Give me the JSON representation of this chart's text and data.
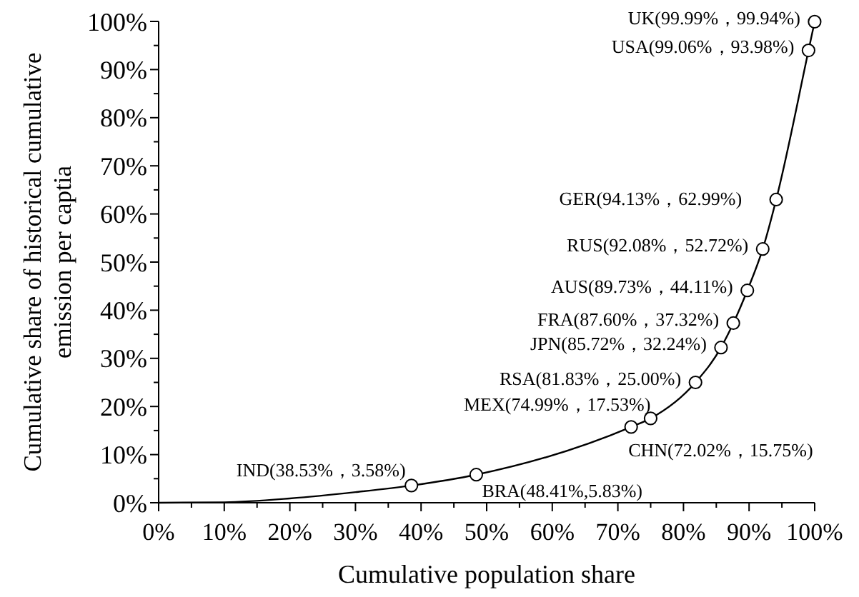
{
  "chart_data": {
    "type": "line",
    "xlabel": "Cumulative population share",
    "ylabel": "Cumulative share of historical cumulative emission per captia",
    "xlim": [
      0,
      100
    ],
    "ylim": [
      0,
      100
    ],
    "xticks": [
      {
        "value": 0,
        "label": "0%"
      },
      {
        "value": 5,
        "label": null
      },
      {
        "value": 10,
        "label": "10%"
      },
      {
        "value": 15,
        "label": null
      },
      {
        "value": 20,
        "label": "20%"
      },
      {
        "value": 25,
        "label": null
      },
      {
        "value": 30,
        "label": "30%"
      },
      {
        "value": 35,
        "label": null
      },
      {
        "value": 40,
        "label": "40%"
      },
      {
        "value": 45,
        "label": null
      },
      {
        "value": 50,
        "label": "50%"
      },
      {
        "value": 55,
        "label": null
      },
      {
        "value": 60,
        "label": "60%"
      },
      {
        "value": 65,
        "label": null
      },
      {
        "value": 70,
        "label": "70%"
      },
      {
        "value": 75,
        "label": null
      },
      {
        "value": 80,
        "label": "80%"
      },
      {
        "value": 85,
        "label": null
      },
      {
        "value": 90,
        "label": "90%"
      },
      {
        "value": 95,
        "label": null
      },
      {
        "value": 100,
        "label": "100%"
      }
    ],
    "yticks": [
      {
        "value": 0,
        "label": "0%"
      },
      {
        "value": 5,
        "label": null
      },
      {
        "value": 10,
        "label": "10%"
      },
      {
        "value": 15,
        "label": null
      },
      {
        "value": 20,
        "label": "20%"
      },
      {
        "value": 25,
        "label": null
      },
      {
        "value": 30,
        "label": "30%"
      },
      {
        "value": 35,
        "label": null
      },
      {
        "value": 40,
        "label": "40%"
      },
      {
        "value": 45,
        "label": null
      },
      {
        "value": 50,
        "label": "50%"
      },
      {
        "value": 55,
        "label": null
      },
      {
        "value": 60,
        "label": "60%"
      },
      {
        "value": 65,
        "label": null
      },
      {
        "value": 70,
        "label": "70%"
      },
      {
        "value": 75,
        "label": null
      },
      {
        "value": 80,
        "label": "80%"
      },
      {
        "value": 85,
        "label": null
      },
      {
        "value": 90,
        "label": "90%"
      },
      {
        "value": 95,
        "label": null
      },
      {
        "value": 100,
        "label": "100%"
      }
    ],
    "grid": false,
    "series": [
      {
        "marker": "none",
        "color": "#000000",
        "x": [
          0,
          10,
          20,
          30,
          38.53,
          48.41,
          72.02,
          74.99,
          81.83,
          85.72,
          87.6,
          89.73,
          92.08,
          94.13,
          99.06,
          99.99
        ],
        "values": [
          0,
          0.1,
          0.9,
          2.2,
          3.58,
          5.83,
          15.75,
          17.53,
          25.0,
          32.24,
          37.32,
          44.11,
          52.72,
          62.99,
          93.98,
          99.94
        ]
      },
      {
        "type": "scatter",
        "marker": "circle",
        "color": "#000000",
        "x": [
          38.53,
          48.41,
          72.02,
          74.99,
          81.83,
          85.72,
          87.6,
          89.73,
          92.08,
          94.13,
          99.06,
          99.99
        ],
        "values": [
          3.58,
          5.83,
          15.75,
          17.53,
          25.0,
          32.24,
          37.32,
          44.11,
          52.72,
          62.99,
          93.98,
          99.94
        ]
      }
    ],
    "annotations": [
      {
        "text": "IND(38.53%，3.58%)",
        "x": 38.53,
        "y": 3.58
      },
      {
        "text": "BRA(48.41%,5.83%)",
        "x": 48.41,
        "y": 5.83
      },
      {
        "text": "CHN(72.02%，15.75%)",
        "x": 72.02,
        "y": 15.75
      },
      {
        "text": "MEX(74.99%，17.53%)",
        "x": 74.99,
        "y": 17.53
      },
      {
        "text": "RSA(81.83%，25.00%)",
        "x": 81.83,
        "y": 25.0
      },
      {
        "text": "JPN(85.72%，32.24%)",
        "x": 85.72,
        "y": 32.24
      },
      {
        "text": "FRA(87.60%，37.32%)",
        "x": 87.6,
        "y": 37.32
      },
      {
        "text": "AUS(89.73%，44.11%)",
        "x": 89.73,
        "y": 44.11
      },
      {
        "text": "RUS(92.08%，52.72%)",
        "x": 92.08,
        "y": 52.72
      },
      {
        "text": "GER(94.13%，62.99%)",
        "x": 94.13,
        "y": 62.99
      },
      {
        "text": "USA(99.06%，93.98%)",
        "x": 99.06,
        "y": 93.98
      },
      {
        "text": "UK(99.99%，99.94%)",
        "x": 99.99,
        "y": 99.94
      }
    ]
  }
}
